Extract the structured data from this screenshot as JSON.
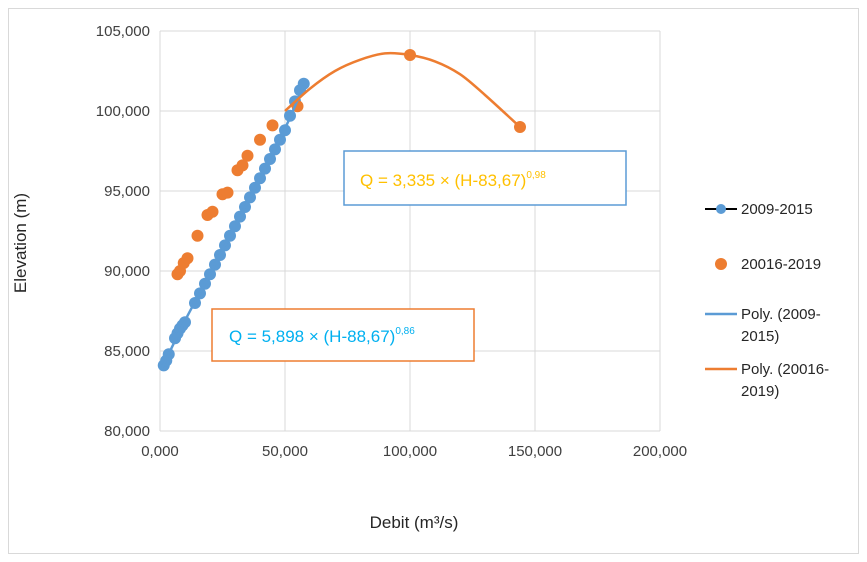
{
  "chart_data": {
    "type": "scatter",
    "xlabel": "Debit (m³/s)",
    "ylabel": "Elevation (m)",
    "xlim": [
      0,
      200
    ],
    "ylim": [
      80,
      105
    ],
    "x_ticks": [
      "0,000",
      "50,000",
      "100,000",
      "150,000",
      "200,000"
    ],
    "y_ticks": [
      "80,000",
      "85,000",
      "90,000",
      "95,000",
      "100,000",
      "105,000"
    ],
    "grid": true,
    "legend_position": "right",
    "series": [
      {
        "name": "2009-2015",
        "kind": "markers",
        "marker": "circle",
        "color": "#5b9bd5",
        "legend_style": "line-marker",
        "legend_line_color": "#000000",
        "x": [
          1.5,
          2.5,
          3.5,
          6.0,
          7.0,
          8.0,
          9.0,
          10.0,
          14.0,
          16.0,
          18.0,
          20.0,
          22.0,
          24.0,
          26.0,
          28.0,
          30.0,
          32.0,
          34.0,
          36.0,
          38.0,
          40.0,
          42.0,
          44.0,
          46.0,
          48.0,
          50.0,
          52.0,
          54.0,
          56.0,
          57.5
        ],
        "y": [
          84.1,
          84.4,
          84.8,
          85.8,
          86.1,
          86.4,
          86.6,
          86.8,
          88.0,
          88.6,
          89.2,
          89.8,
          90.4,
          91.0,
          91.6,
          92.2,
          92.8,
          93.4,
          94.0,
          94.6,
          95.2,
          95.8,
          96.4,
          97.0,
          97.6,
          98.2,
          98.8,
          99.7,
          100.6,
          101.3,
          101.7
        ]
      },
      {
        "name": "20016-2019",
        "kind": "markers",
        "marker": "circle",
        "color": "#ed7d31",
        "legend_style": "marker",
        "x": [
          7.0,
          8.0,
          9.5,
          11.0,
          15.0,
          19.0,
          21.0,
          25.0,
          27.0,
          31.0,
          33.0,
          35.0,
          40.0,
          45.0,
          55.0,
          100.0,
          144.0
        ],
        "y": [
          89.8,
          90.0,
          90.5,
          90.8,
          92.2,
          93.5,
          93.7,
          94.8,
          94.9,
          96.3,
          96.6,
          97.2,
          98.2,
          99.1,
          100.3,
          103.5,
          99.0
        ]
      },
      {
        "name": "Poly. (2009-2015)",
        "kind": "trendline",
        "color": "#5b9bd5",
        "legend_style": "line",
        "x": [
          1.0,
          10.0,
          20.0,
          30.0,
          40.0,
          50.0,
          57.5
        ],
        "y": [
          84.0,
          86.9,
          89.8,
          92.8,
          95.8,
          98.9,
          101.6
        ]
      },
      {
        "name": "Poly. (20016-2019)",
        "kind": "trendline",
        "color": "#ed7d31",
        "legend_style": "line",
        "x": [
          50.0,
          60.0,
          70.0,
          80.0,
          90.0,
          100.0,
          110.0,
          120.0,
          130.0,
          144.0
        ],
        "y": [
          100.0,
          101.4,
          102.5,
          103.2,
          103.6,
          103.5,
          103.1,
          102.3,
          101.0,
          99.0
        ]
      }
    ],
    "annotations": [
      {
        "text": "Q = 3,335 × (H-83,67)",
        "sup": "0,98",
        "color": "#ffc000",
        "border": "#5b9bd5"
      },
      {
        "text": "Q = 5,898 × (H-88,67)",
        "sup": "0,86",
        "color": "#00b0f0",
        "border": "#ed7d31"
      }
    ],
    "legend": [
      "2009-2015",
      "20016-2019",
      "Poly. (2009-2015)",
      "Poly. (20016-2019)"
    ]
  }
}
